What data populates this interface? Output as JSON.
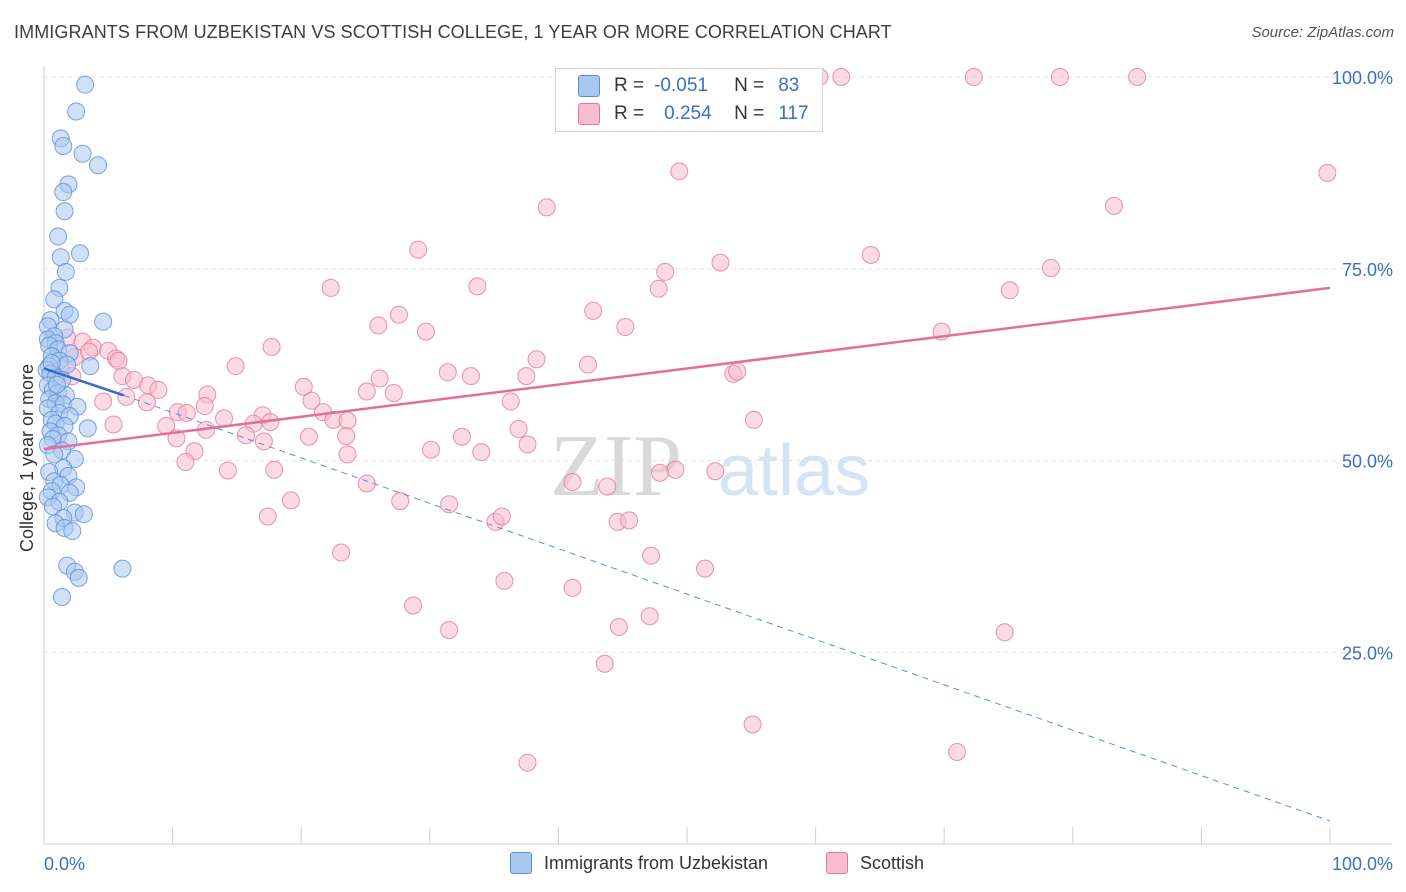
{
  "header": {
    "title": "IMMIGRANTS FROM UZBEKISTAN VS SCOTTISH COLLEGE, 1 YEAR OR MORE CORRELATION CHART",
    "source": "Source: ZipAtlas.com"
  },
  "legend": {
    "rows": [
      {
        "r_label": "R =",
        "r_value": "-0.051",
        "n_label": "N =",
        "n_value": "83",
        "color": "#a9c8f0",
        "border": "#5b8fd6"
      },
      {
        "r_label": "R =",
        "r_value": "0.254",
        "n_label": "N =",
        "n_value": "117",
        "color": "#f7bccd",
        "border": "#e07a9b"
      }
    ]
  },
  "watermark": {
    "zip": "ZIP",
    "atlas": "atlas"
  },
  "chart_data": {
    "type": "scatter",
    "title": "IMMIGRANTS FROM UZBEKISTAN VS SCOTTISH COLLEGE, 1 YEAR OR MORE CORRELATION CHART",
    "xlabel": "",
    "ylabel": "College, 1 year or more",
    "xlim": [
      0,
      100
    ],
    "ylim": [
      0,
      100
    ],
    "x_tick_labels": [
      "0.0%",
      "100.0%"
    ],
    "y_tick_labels": [
      "25.0%",
      "50.0%",
      "75.0%",
      "100.0%"
    ],
    "y_ticks": [
      25,
      50,
      75,
      100
    ],
    "grid": true,
    "series": [
      {
        "name": "Immigrants from Uzbekistan",
        "color": "#5b8fd6",
        "fill": "#a9c8f0",
        "r": -0.051,
        "n": 83,
        "trend": {
          "x0": 0,
          "y0": 62.0,
          "x1": 6.2,
          "y1": 58.5,
          "dash_x1": 100,
          "dash_y1": 3.0
        },
        "points": [
          [
            3.2,
            99.0
          ],
          [
            2.5,
            95.5
          ],
          [
            1.3,
            92.0
          ],
          [
            1.5,
            91.0
          ],
          [
            3.0,
            90.0
          ],
          [
            4.2,
            88.5
          ],
          [
            1.9,
            86.0
          ],
          [
            1.5,
            85.0
          ],
          [
            1.6,
            82.5
          ],
          [
            1.1,
            79.2
          ],
          [
            2.8,
            77.0
          ],
          [
            1.3,
            76.5
          ],
          [
            1.7,
            74.6
          ],
          [
            1.2,
            72.5
          ],
          [
            0.8,
            71.0
          ],
          [
            1.6,
            69.5
          ],
          [
            2.0,
            69.0
          ],
          [
            0.5,
            68.3
          ],
          [
            0.3,
            67.5
          ],
          [
            4.6,
            68.1
          ],
          [
            1.6,
            67.1
          ],
          [
            0.8,
            66.2
          ],
          [
            0.3,
            65.8
          ],
          [
            0.9,
            65.3
          ],
          [
            0.4,
            65.0
          ],
          [
            1.1,
            64.5
          ],
          [
            2.0,
            64.0
          ],
          [
            0.6,
            63.6
          ],
          [
            1.2,
            63.0
          ],
          [
            0.4,
            62.3
          ],
          [
            1.8,
            62.5
          ],
          [
            3.6,
            62.3
          ],
          [
            0.2,
            61.8
          ],
          [
            0.5,
            61.3
          ],
          [
            0.9,
            60.8
          ],
          [
            1.4,
            60.5
          ],
          [
            0.3,
            59.8
          ],
          [
            0.7,
            59.2
          ],
          [
            1.1,
            58.8
          ],
          [
            1.7,
            58.5
          ],
          [
            0.4,
            58.0
          ],
          [
            0.9,
            57.5
          ],
          [
            1.5,
            57.3
          ],
          [
            2.6,
            57.0
          ],
          [
            0.3,
            56.8
          ],
          [
            1.2,
            56.2
          ],
          [
            2.0,
            55.8
          ],
          [
            0.6,
            55.3
          ],
          [
            0.9,
            54.8
          ],
          [
            1.6,
            54.5
          ],
          [
            3.4,
            54.2
          ],
          [
            0.5,
            53.8
          ],
          [
            1.1,
            53.3
          ],
          [
            0.7,
            52.8
          ],
          [
            1.9,
            52.5
          ],
          [
            0.3,
            52.0
          ],
          [
            1.4,
            51.3
          ],
          [
            0.8,
            50.8
          ],
          [
            2.4,
            50.2
          ],
          [
            1.5,
            49.0
          ],
          [
            0.4,
            48.5
          ],
          [
            1.9,
            48.0
          ],
          [
            0.8,
            47.3
          ],
          [
            1.3,
            46.8
          ],
          [
            2.5,
            46.5
          ],
          [
            0.6,
            46.0
          ],
          [
            2.0,
            45.8
          ],
          [
            0.3,
            45.2
          ],
          [
            1.2,
            44.6
          ],
          [
            0.7,
            44.0
          ],
          [
            2.4,
            43.2
          ],
          [
            1.5,
            42.5
          ],
          [
            3.1,
            43.0
          ],
          [
            0.9,
            41.8
          ],
          [
            1.6,
            41.2
          ],
          [
            2.2,
            40.8
          ],
          [
            1.8,
            36.3
          ],
          [
            2.4,
            35.5
          ],
          [
            6.1,
            35.9
          ],
          [
            2.7,
            34.7
          ],
          [
            1.4,
            32.2
          ],
          [
            0.6,
            62.7
          ],
          [
            1.0,
            59.9
          ]
        ]
      },
      {
        "name": "Scottish",
        "color": "#e07a9b",
        "fill": "#f7bccd",
        "r": 0.254,
        "n": 117,
        "trend": {
          "x0": 0,
          "y0": 51.5,
          "x1": 100,
          "y1": 72.5
        },
        "points": [
          [
            59.5,
            100.0
          ],
          [
            62.0,
            100.0
          ],
          [
            72.3,
            100.0
          ],
          [
            79.0,
            100.0
          ],
          [
            85.0,
            100.0
          ],
          [
            43.5,
            94.5
          ],
          [
            51.5,
            94.0
          ],
          [
            99.8,
            87.5
          ],
          [
            49.4,
            87.7
          ],
          [
            83.2,
            83.2
          ],
          [
            39.1,
            83.0
          ],
          [
            29.1,
            77.5
          ],
          [
            64.3,
            76.8
          ],
          [
            52.6,
            75.8
          ],
          [
            78.3,
            75.1
          ],
          [
            48.3,
            74.6
          ],
          [
            47.8,
            72.4
          ],
          [
            33.7,
            72.7
          ],
          [
            22.3,
            72.5
          ],
          [
            75.1,
            72.2
          ],
          [
            42.7,
            69.5
          ],
          [
            27.6,
            69.0
          ],
          [
            26.0,
            67.6
          ],
          [
            45.2,
            67.4
          ],
          [
            29.7,
            66.8
          ],
          [
            69.8,
            66.8
          ],
          [
            1.8,
            66.0
          ],
          [
            3.0,
            65.5
          ],
          [
            3.8,
            64.7
          ],
          [
            5.0,
            64.3
          ],
          [
            17.7,
            64.8
          ],
          [
            2.4,
            63.5
          ],
          [
            5.6,
            63.3
          ],
          [
            38.3,
            63.2
          ],
          [
            42.3,
            62.5
          ],
          [
            1.3,
            62.0
          ],
          [
            2.2,
            61.0
          ],
          [
            14.9,
            62.3
          ],
          [
            31.4,
            61.5
          ],
          [
            53.6,
            61.3
          ],
          [
            6.1,
            61.0
          ],
          [
            7.0,
            60.5
          ],
          [
            26.1,
            60.7
          ],
          [
            33.2,
            61.0
          ],
          [
            37.5,
            61.0
          ],
          [
            8.1,
            59.8
          ],
          [
            20.2,
            59.6
          ],
          [
            25.1,
            59.0
          ],
          [
            27.2,
            58.8
          ],
          [
            8.9,
            59.2
          ],
          [
            12.7,
            58.6
          ],
          [
            6.4,
            58.3
          ],
          [
            8.0,
            57.6
          ],
          [
            20.8,
            57.8
          ],
          [
            36.3,
            57.7
          ],
          [
            12.5,
            57.1
          ],
          [
            21.7,
            56.3
          ],
          [
            10.4,
            56.3
          ],
          [
            11.1,
            56.2
          ],
          [
            17.0,
            55.9
          ],
          [
            14.0,
            55.5
          ],
          [
            22.5,
            55.3
          ],
          [
            23.6,
            55.2
          ],
          [
            17.6,
            55.0
          ],
          [
            16.3,
            54.8
          ],
          [
            5.4,
            54.7
          ],
          [
            9.5,
            54.5
          ],
          [
            12.6,
            54.0
          ],
          [
            36.9,
            54.1
          ],
          [
            55.2,
            55.3
          ],
          [
            23.5,
            53.2
          ],
          [
            15.7,
            53.3
          ],
          [
            20.6,
            53.1
          ],
          [
            32.5,
            53.1
          ],
          [
            10.3,
            52.9
          ],
          [
            17.1,
            52.5
          ],
          [
            37.6,
            52.1
          ],
          [
            30.1,
            51.4
          ],
          [
            34.0,
            51.1
          ],
          [
            11.7,
            51.2
          ],
          [
            23.6,
            50.8
          ],
          [
            11.0,
            49.8
          ],
          [
            49.1,
            48.8
          ],
          [
            14.3,
            48.7
          ],
          [
            17.9,
            48.8
          ],
          [
            52.2,
            48.6
          ],
          [
            25.1,
            47.0
          ],
          [
            43.8,
            46.6
          ],
          [
            41.1,
            47.2
          ],
          [
            27.7,
            44.7
          ],
          [
            19.2,
            44.8
          ],
          [
            31.5,
            44.3
          ],
          [
            17.4,
            42.7
          ],
          [
            35.1,
            42.0
          ],
          [
            35.6,
            42.7
          ],
          [
            44.6,
            42.0
          ],
          [
            45.5,
            42.2
          ],
          [
            23.1,
            38.0
          ],
          [
            47.2,
            37.6
          ],
          [
            51.4,
            35.9
          ],
          [
            35.8,
            34.3
          ],
          [
            41.1,
            33.4
          ],
          [
            28.7,
            31.1
          ],
          [
            47.1,
            29.7
          ],
          [
            44.7,
            28.3
          ],
          [
            31.5,
            27.9
          ],
          [
            74.7,
            27.6
          ],
          [
            43.6,
            23.5
          ],
          [
            55.1,
            15.6
          ],
          [
            71.0,
            12.0
          ],
          [
            37.6,
            10.6
          ],
          [
            4.6,
            57.7
          ],
          [
            5.8,
            63.0
          ],
          [
            3.5,
            64.2
          ],
          [
            47.9,
            48.4
          ],
          [
            60.3,
            100.0
          ],
          [
            53.9,
            61.6
          ]
        ]
      }
    ]
  }
}
